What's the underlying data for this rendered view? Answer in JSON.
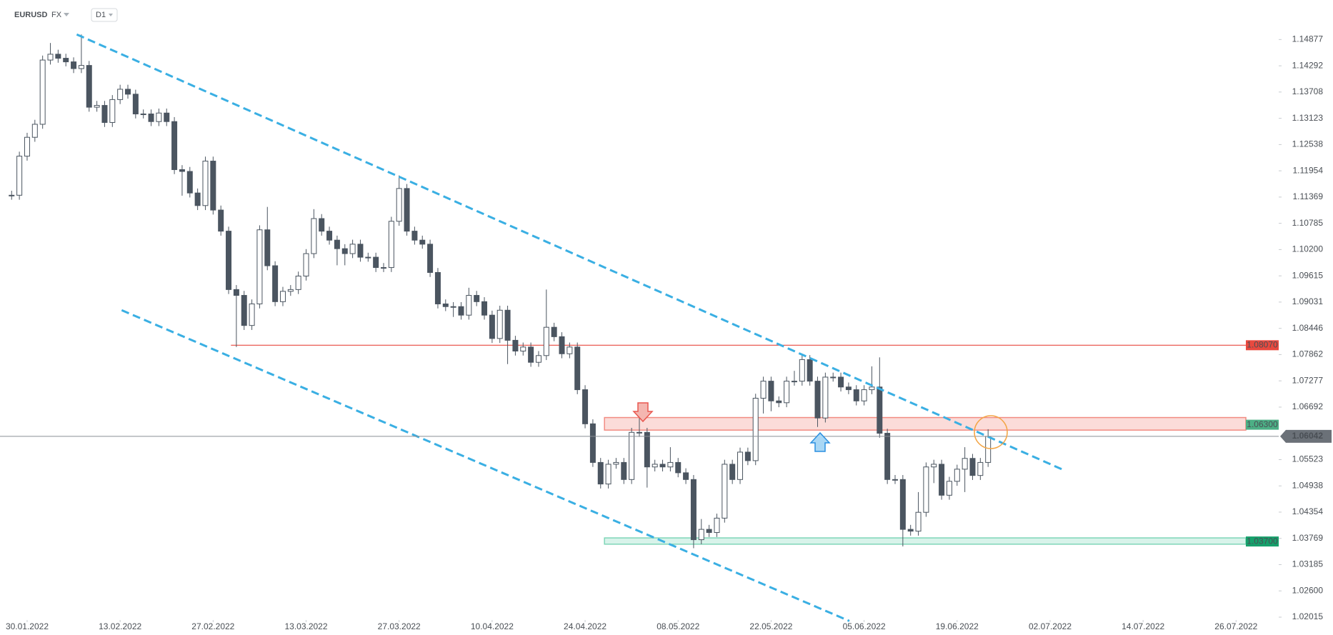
{
  "chart_data": {
    "type": "candlestick",
    "symbol": "EURUSD",
    "market": "FX",
    "interval": "D1",
    "up_color": "#ffffff",
    "down_color": "#4b5560",
    "wick_color": "#4b5560",
    "open": [
      1.1141,
      1.1141,
      1.1228,
      1.127,
      1.1299,
      1.1442,
      1.1455,
      1.1446,
      1.1438,
      1.1423,
      1.143,
      1.1337,
      1.1341,
      1.1303,
      1.1354,
      1.1377,
      1.1366,
      1.1322,
      1.1322,
      1.1305,
      1.1324,
      1.1305,
      1.1198,
      1.1194,
      1.1146,
      1.1118,
      1.1217,
      1.1108,
      1.1061,
      1.0931,
      1.0918,
      1.0851,
      1.0899,
      1.1064,
      1.0984,
      1.0904,
      1.0927,
      1.0931,
      1.0961,
      1.1011,
      1.1089,
      1.1061,
      1.1041,
      1.1022,
      1.1011,
      1.1032,
      1.1003,
      1.1003,
      1.098,
      1.098,
      1.1083,
      1.1156,
      1.1061,
      1.1041,
      1.1032,
      1.0969,
      1.0899,
      1.0893,
      1.0893,
      1.0874,
      1.0918,
      1.0904,
      1.0874,
      1.0822,
      1.0885,
      1.0818,
      1.0794,
      1.0803,
      1.0769,
      1.0784,
      1.0847,
      1.0826,
      1.0788,
      1.0803,
      1.0708,
      1.0632,
      1.0546,
      1.0498,
      1.0542,
      1.0546,
      1.0508,
      1.0613,
      1.0613,
      1.0536,
      1.0542,
      1.0536,
      1.0546,
      1.0523,
      1.0508,
      1.0374,
      1.0397,
      1.039,
      1.0422,
      1.0542,
      1.0508,
      1.0569,
      1.055,
      1.0689,
      1.0727,
      1.0683,
      1.0679,
      1.0727,
      1.0727,
      1.0775,
      1.0727,
      1.0645,
      1.0736,
      1.0736,
      1.0714,
      1.0708,
      1.0683,
      1.0708,
      1.0714,
      1.0611,
      1.0508,
      1.0508,
      1.0397,
      1.0393,
      1.0435,
      1.0536,
      1.0542,
      1.0473,
      1.0504,
      1.0531,
      1.0555,
      1.0517,
      1.0546
    ],
    "high": [
      1.1151,
      1.1238,
      1.128,
      1.1309,
      1.1452,
      1.148,
      1.1465,
      1.1456,
      1.1448,
      1.1499,
      1.144,
      1.1351,
      1.1351,
      1.1364,
      1.1387,
      1.1387,
      1.1376,
      1.1332,
      1.1332,
      1.1334,
      1.1334,
      1.1315,
      1.1208,
      1.1204,
      1.1156,
      1.1227,
      1.1227,
      1.1118,
      1.1071,
      1.0941,
      1.0928,
      1.0909,
      1.1074,
      1.1115,
      1.0994,
      1.0937,
      1.0941,
      1.0971,
      1.1021,
      1.111,
      1.1099,
      1.1071,
      1.1051,
      1.1032,
      1.1042,
      1.1042,
      1.1013,
      1.1013,
      1.099,
      1.1093,
      1.1185,
      1.1166,
      1.1071,
      1.1051,
      1.1042,
      1.0979,
      1.0909,
      1.0903,
      1.0903,
      1.0935,
      1.0928,
      1.0914,
      1.0884,
      1.0895,
      1.0895,
      1.0828,
      1.0813,
      1.0813,
      1.0794,
      1.0931,
      1.0857,
      1.0836,
      1.0813,
      1.0813,
      1.0718,
      1.0642,
      1.0556,
      1.0552,
      1.0556,
      1.0556,
      1.0623,
      1.0651,
      1.0623,
      1.0552,
      1.0552,
      1.058,
      1.0556,
      1.0533,
      1.0518,
      1.042,
      1.0407,
      1.0432,
      1.0552,
      1.0552,
      1.0579,
      1.0579,
      1.0699,
      1.0737,
      1.0737,
      1.0693,
      1.0737,
      1.075,
      1.0785,
      1.0785,
      1.0737,
      1.0746,
      1.0746,
      1.0746,
      1.0724,
      1.0718,
      1.0718,
      1.076,
      1.078,
      1.0621,
      1.0518,
      1.0518,
      1.0407,
      1.048,
      1.0546,
      1.0552,
      1.0552,
      1.0514,
      1.0541,
      1.058,
      1.0565,
      1.0556,
      1.062
    ],
    "low": [
      1.1131,
      1.1131,
      1.1218,
      1.126,
      1.1289,
      1.1432,
      1.1436,
      1.1428,
      1.1413,
      1.1413,
      1.1327,
      1.1327,
      1.1293,
      1.1293,
      1.1344,
      1.1356,
      1.1312,
      1.1312,
      1.1295,
      1.1295,
      1.1295,
      1.1188,
      1.114,
      1.1136,
      1.1108,
      1.1108,
      1.1098,
      1.1051,
      1.0921,
      1.0803,
      1.0841,
      1.0841,
      1.0889,
      1.0974,
      1.0894,
      1.0894,
      1.0917,
      1.0921,
      1.0951,
      1.1001,
      1.1051,
      1.1031,
      1.0985,
      1.0985,
      1.1001,
      1.0993,
      1.0993,
      1.097,
      1.097,
      1.097,
      1.1073,
      1.1051,
      1.1031,
      1.1022,
      1.0959,
      1.0889,
      1.0883,
      1.087,
      1.0864,
      1.0864,
      1.0894,
      1.0864,
      1.0812,
      1.0812,
      1.0765,
      1.0784,
      1.0784,
      1.0759,
      1.0759,
      1.0774,
      1.0816,
      1.0778,
      1.0778,
      1.0698,
      1.0622,
      1.0536,
      1.0488,
      1.0488,
      1.0532,
      1.0498,
      1.0498,
      1.0603,
      1.049,
      1.0526,
      1.0526,
      1.0526,
      1.0513,
      1.0498,
      1.0355,
      1.0364,
      1.038,
      1.038,
      1.0412,
      1.0498,
      1.0498,
      1.054,
      1.054,
      1.0655,
      1.066,
      1.0669,
      1.0669,
      1.0717,
      1.0717,
      1.0717,
      1.0625,
      1.0635,
      1.0726,
      1.0704,
      1.0698,
      1.0673,
      1.0673,
      1.0698,
      1.0601,
      1.0498,
      1.0498,
      1.0359,
      1.0383,
      1.0383,
      1.0425,
      1.05,
      1.0463,
      1.0463,
      1.0494,
      1.048,
      1.0507,
      1.0507,
      1.0536
    ],
    "close": [
      1.1141,
      1.1228,
      1.127,
      1.1299,
      1.1442,
      1.1455,
      1.1446,
      1.1438,
      1.1423,
      1.143,
      1.1337,
      1.1341,
      1.1303,
      1.1354,
      1.1377,
      1.1366,
      1.1322,
      1.1322,
      1.1305,
      1.1324,
      1.1305,
      1.1198,
      1.1194,
      1.1146,
      1.1118,
      1.1217,
      1.1108,
      1.1061,
      1.0931,
      1.0918,
      1.0851,
      1.0899,
      1.1064,
      1.0984,
      1.0904,
      1.0927,
      1.0931,
      1.0961,
      1.1011,
      1.1089,
      1.1061,
      1.1041,
      1.1022,
      1.1011,
      1.1032,
      1.1003,
      1.1003,
      1.098,
      1.098,
      1.1083,
      1.1156,
      1.1061,
      1.1041,
      1.1032,
      1.0969,
      1.0899,
      1.0893,
      1.0893,
      1.0874,
      1.0918,
      1.0904,
      1.0874,
      1.0822,
      1.0885,
      1.0818,
      1.0794,
      1.0803,
      1.0769,
      1.0784,
      1.0847,
      1.0826,
      1.0788,
      1.0803,
      1.0708,
      1.0632,
      1.0546,
      1.0498,
      1.0542,
      1.0546,
      1.0508,
      1.0613,
      1.0613,
      1.0536,
      1.0542,
      1.0536,
      1.0546,
      1.0523,
      1.0508,
      1.0374,
      1.0397,
      1.039,
      1.0422,
      1.0542,
      1.0508,
      1.0569,
      1.055,
      1.0689,
      1.0727,
      1.0683,
      1.0679,
      1.0727,
      1.0727,
      1.0775,
      1.0727,
      1.0645,
      1.0736,
      1.0736,
      1.0714,
      1.0708,
      1.0683,
      1.0708,
      1.0714,
      1.0611,
      1.0508,
      1.0508,
      1.0397,
      1.0393,
      1.0435,
      1.0536,
      1.0542,
      1.0473,
      1.0504,
      1.0531,
      1.0555,
      1.0517,
      1.0546,
      1.0604
    ],
    "xlim": [
      -1.5,
      163.5
    ],
    "xticks": [
      {
        "value": 2,
        "label": "30.01.2022"
      },
      {
        "value": 14,
        "label": "13.02.2022"
      },
      {
        "value": 26,
        "label": "27.02.2022"
      },
      {
        "value": 38,
        "label": "13.03.2022"
      },
      {
        "value": 50,
        "label": "27.03.2022"
      },
      {
        "value": 62,
        "label": "10.04.2022"
      },
      {
        "value": 74,
        "label": "24.04.2022"
      },
      {
        "value": 86,
        "label": "08.05.2022"
      },
      {
        "value": 98,
        "label": "22.05.2022"
      },
      {
        "value": 110,
        "label": "05.06.2022"
      },
      {
        "value": 122,
        "label": "19.06.2022"
      },
      {
        "value": 134,
        "label": "02.07.2022"
      },
      {
        "value": 146,
        "label": "14.07.2022"
      },
      {
        "value": 158,
        "label": "26.07.2022"
      }
    ],
    "ylim": [
      1.0192,
      1.1528
    ],
    "yticks": [
      1.14877,
      1.14292,
      1.13708,
      1.13123,
      1.12538,
      1.11954,
      1.11369,
      1.10785,
      {
        "value": 1.102,
        "label": "1.10200"
      },
      1.09615,
      1.09031,
      1.08446,
      1.07862,
      1.07277,
      1.06692,
      1.05523,
      1.04938,
      1.04354,
      1.03769,
      1.03185,
      {
        "value": 1.026,
        "label": "1.02600"
      },
      1.02015
    ],
    "levels": [
      {
        "value": 1.0807,
        "label": "1.08070",
        "start": 28.3,
        "color": "#e8493f"
      }
    ],
    "zones": [
      {
        "value": 1.063,
        "label": "1.06300",
        "top": 1.0646,
        "bottom": 1.0618,
        "start": 76.5,
        "color": "#f28b82",
        "label_color": "#4caf85"
      },
      {
        "value": 1.037,
        "label": "1.03700",
        "top": 1.0378,
        "bottom": 1.0364,
        "start": 76.5,
        "color": "#7fd6b8",
        "label_color": "#16a06b"
      }
    ],
    "last_price": {
      "value": 1.06042,
      "label": "1.06042",
      "color": "#8a8f95"
    },
    "trendline_color": "#3aafe3",
    "trendlines": [
      {
        "x": [
          8.4,
          135.5
        ],
        "y": [
          1.1499,
          1.0531
        ]
      },
      {
        "x": [
          14.2,
          108.1
        ],
        "y": [
          1.0885,
          1.0193
        ]
      }
    ]
  }
}
